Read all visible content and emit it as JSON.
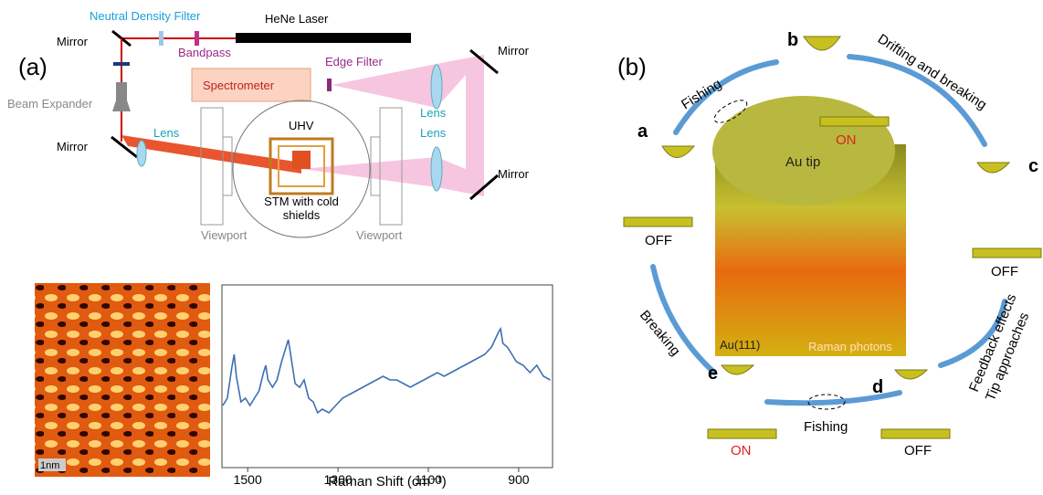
{
  "panel_a": {
    "label": "(a)",
    "laser": "HeNe Laser",
    "nd_filter": "Neutral Density Filter",
    "bandpass": "Bandpass",
    "mirrors": [
      "Mirror",
      "Mirror",
      "Mirror",
      "Mirror"
    ],
    "beam_expander": "Beam Expander",
    "spectrometer": "Spectrometer",
    "edge_filter": "Edge Filter",
    "lenses": [
      "Lens",
      "Lens",
      "Lens"
    ],
    "uhv": "UHV",
    "stm_lines": [
      "STM with cold",
      "shields"
    ],
    "viewports": [
      "Viewport",
      "Viewport"
    ],
    "scale_bar": "1nm"
  },
  "chart_data": {
    "type": "line",
    "color": "#3d6fb3",
    "x_label": "Raman Shift (cm⁻¹)",
    "x": [
      1555,
      1545,
      1535,
      1530,
      1525,
      1515,
      1505,
      1495,
      1485,
      1475,
      1465,
      1460,
      1455,
      1445,
      1435,
      1425,
      1415,
      1410,
      1405,
      1395,
      1385,
      1375,
      1365,
      1355,
      1345,
      1335,
      1320,
      1305,
      1290,
      1275,
      1260,
      1245,
      1230,
      1215,
      1200,
      1185,
      1170,
      1155,
      1140,
      1125,
      1110,
      1095,
      1080,
      1065,
      1050,
      1035,
      1020,
      1005,
      990,
      975,
      960,
      945,
      940,
      935,
      925,
      915,
      905,
      890,
      875,
      860,
      845,
      830
    ],
    "values": [
      34,
      38,
      55,
      62,
      50,
      36,
      38,
      34,
      38,
      42,
      52,
      56,
      48,
      44,
      48,
      58,
      66,
      70,
      62,
      46,
      44,
      48,
      38,
      36,
      30,
      32,
      30,
      34,
      38,
      40,
      42,
      44,
      46,
      48,
      50,
      48,
      48,
      46,
      44,
      46,
      48,
      50,
      52,
      50,
      52,
      54,
      56,
      58,
      60,
      62,
      66,
      74,
      76,
      68,
      66,
      62,
      58,
      56,
      52,
      56,
      50,
      48
    ],
    "xlim": [
      1557,
      825
    ],
    "xticks": [
      1500,
      1300,
      1100,
      900
    ],
    "ylim": [
      0,
      100
    ]
  },
  "panel_b": {
    "label": "(b)",
    "steps": [
      "a",
      "b",
      "c",
      "d",
      "e"
    ],
    "fishing_top": "Fishing",
    "drifting": "Drifting and breaking",
    "feedback_lines": [
      "Feedback effects",
      "Tip approaches"
    ],
    "fishing_bottom": "Fishing",
    "breaking": "Breaking",
    "states": [
      "OFF",
      "ON",
      "OFF",
      "OFF",
      "ON"
    ],
    "au_tip": "Au tip",
    "au_111": "Au(111)",
    "raman_photons": "Raman photons"
  }
}
